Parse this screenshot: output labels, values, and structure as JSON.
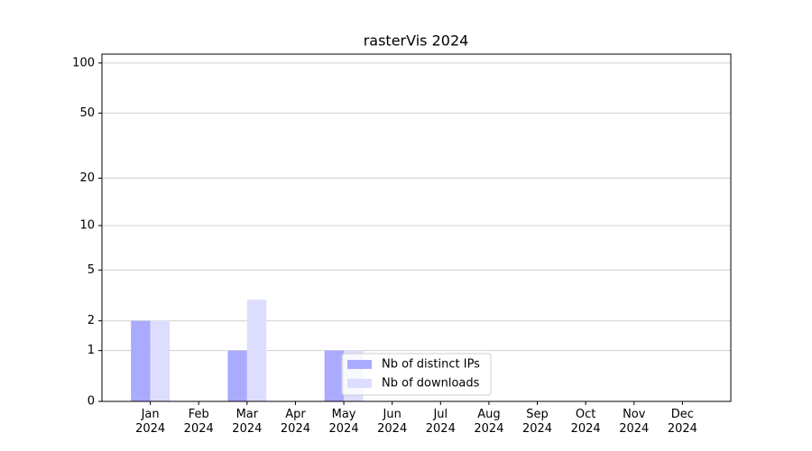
{
  "chart_data": {
    "type": "bar",
    "title": "rasterVis 2024",
    "categories": [
      "Jan 2024",
      "Feb 2024",
      "Mar 2024",
      "Apr 2024",
      "May 2024",
      "Jun 2024",
      "Jul 2024",
      "Aug 2024",
      "Sep 2024",
      "Oct 2024",
      "Nov 2024",
      "Dec 2024"
    ],
    "series": [
      {
        "name": "Nb of distinct IPs",
        "color": "#aaaaff",
        "values": [
          2,
          0,
          1,
          0,
          1,
          0,
          0,
          0,
          0,
          0,
          0,
          0
        ]
      },
      {
        "name": "Nb of downloads",
        "color": "#ddddff",
        "values": [
          2,
          0,
          3,
          0,
          1,
          0,
          0,
          0,
          0,
          0,
          0,
          0
        ]
      }
    ],
    "yscale": "log1p",
    "ylim": [
      0,
      113
    ],
    "yticks": [
      0,
      1,
      2,
      5,
      10,
      20,
      50,
      100
    ],
    "grid": true,
    "legend": "lower center"
  }
}
